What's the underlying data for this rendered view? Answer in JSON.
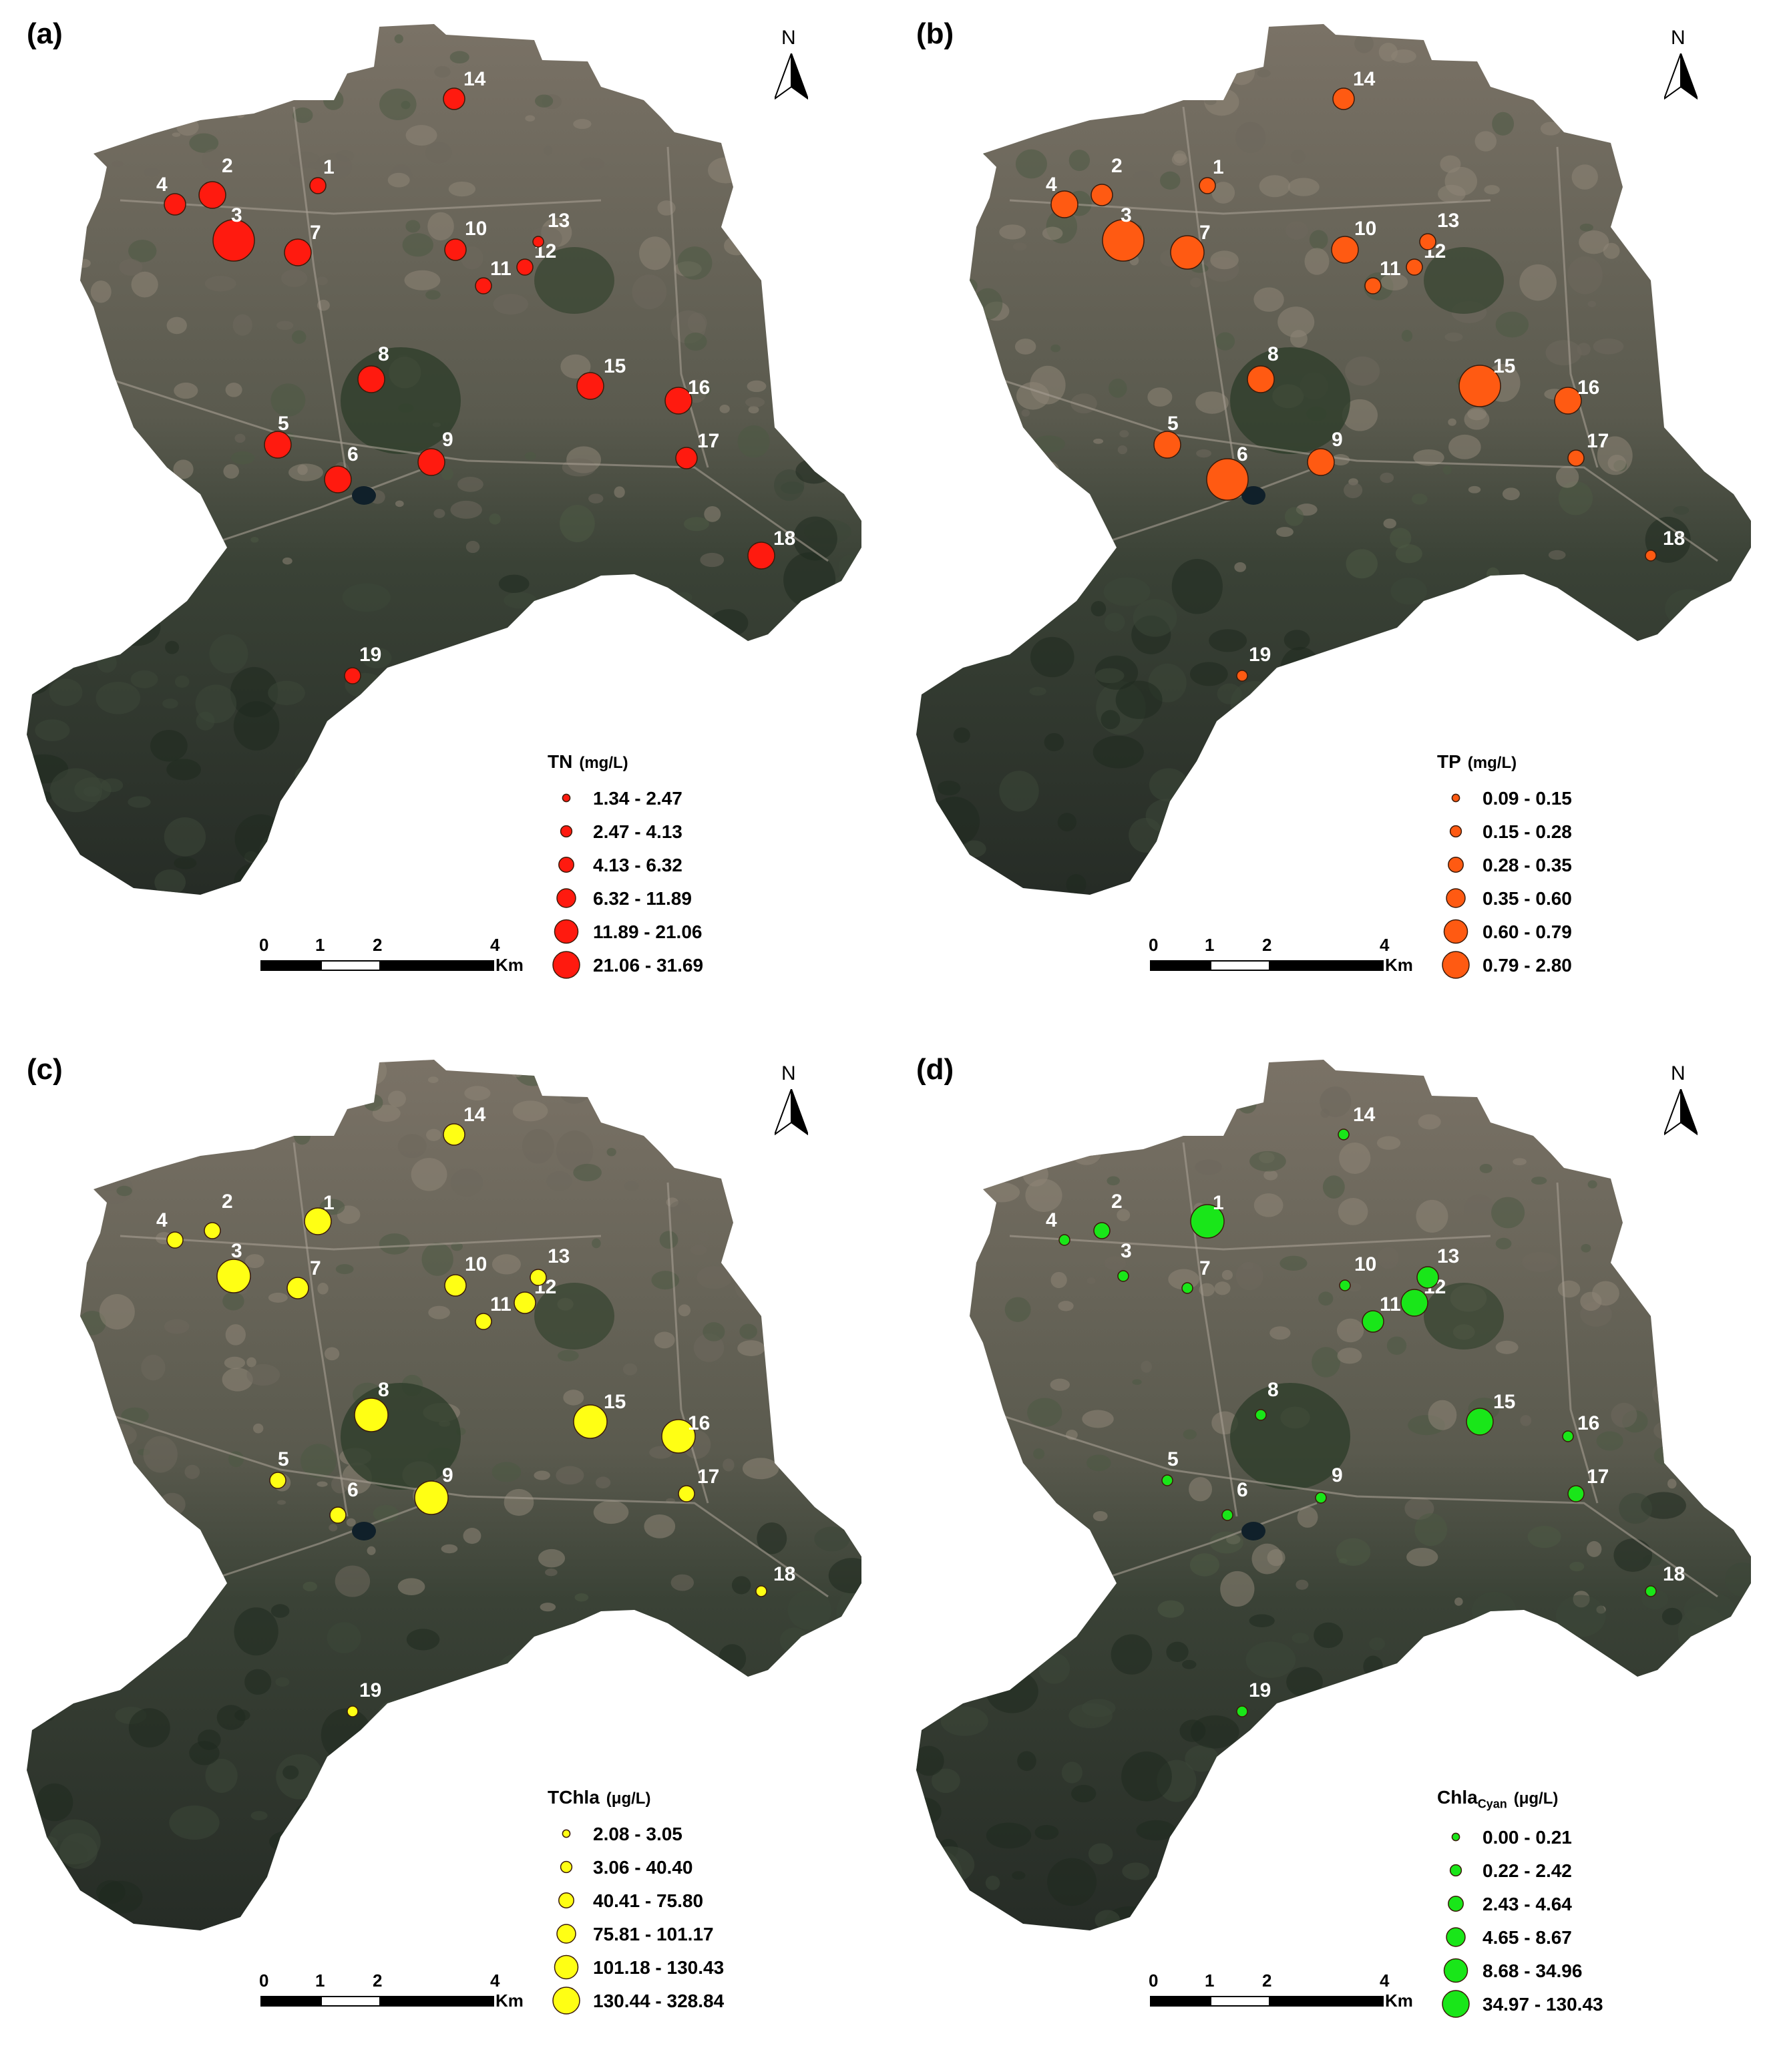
{
  "scale_bar": {
    "ticks": [
      "0",
      "1",
      "2",
      "4"
    ],
    "unit": "Km"
  },
  "north_arrow": {
    "letter": "N"
  },
  "site_labels": [
    "1",
    "2",
    "3",
    "4",
    "5",
    "6",
    "7",
    "8",
    "9",
    "10",
    "11",
    "12",
    "13",
    "14",
    "15",
    "16",
    "17",
    "18",
    "19"
  ],
  "colors": {
    "land_dark": "#2d332c",
    "urban": "#7d7468",
    "forest": "#3a4a33",
    "lake": "#10202a"
  },
  "panels": [
    {
      "label": "(a)",
      "variable": "TN",
      "unit": "(mg/L)",
      "color": "#ff1a0f",
      "legend": [
        "1.34 - 2.47",
        "2.47 - 4.13",
        "4.13 - 6.32",
        "6.32 - 11.89",
        "11.89 - 21.06",
        "21.06 - 31.69"
      ],
      "site_class": [
        2,
        4,
        6,
        3,
        4,
        4,
        4,
        4,
        4,
        3,
        2,
        2,
        1,
        3,
        4,
        4,
        3,
        4,
        2
      ]
    },
    {
      "label": "(b)",
      "variable": "TP",
      "unit": "(mg/L)",
      "color": "#ff5a12",
      "legend": [
        "0.09 - 0.15",
        "0.15 - 0.28",
        "0.28 - 0.35",
        "0.35 - 0.60",
        "0.60 - 0.79",
        "0.79 - 2.80"
      ],
      "site_class": [
        2,
        3,
        6,
        4,
        4,
        6,
        5,
        4,
        4,
        4,
        2,
        2,
        2,
        3,
        6,
        4,
        2,
        1,
        1
      ]
    },
    {
      "label": "(c)",
      "variable": "TChla",
      "unit": "(μg/L)",
      "color": "#ffff14",
      "legend": [
        "2.08 - 3.05",
        "3.06 - 40.40",
        "40.41 - 75.80",
        "75.81 - 101.17",
        "101.18 - 130.43",
        "130.44 - 328.84"
      ],
      "site_class": [
        4,
        2,
        5,
        2,
        2,
        2,
        3,
        5,
        5,
        3,
        2,
        3,
        2,
        3,
        5,
        5,
        2,
        1,
        1
      ]
    },
    {
      "label": "(d)",
      "variable": "Chla",
      "variable_sub": "Cyan",
      "unit": "(μg/L)",
      "color": "#19e619",
      "legend": [
        "0.00 - 0.21",
        "0.22 - 2.42",
        "2.43 - 4.64",
        "4.65 - 8.67",
        "8.68 - 34.96",
        "34.97 - 130.43"
      ],
      "site_class": [
        5,
        2,
        1,
        1,
        1,
        1,
        1,
        1,
        1,
        1,
        3,
        4,
        3,
        1,
        4,
        1,
        2,
        1,
        1
      ]
    }
  ]
}
